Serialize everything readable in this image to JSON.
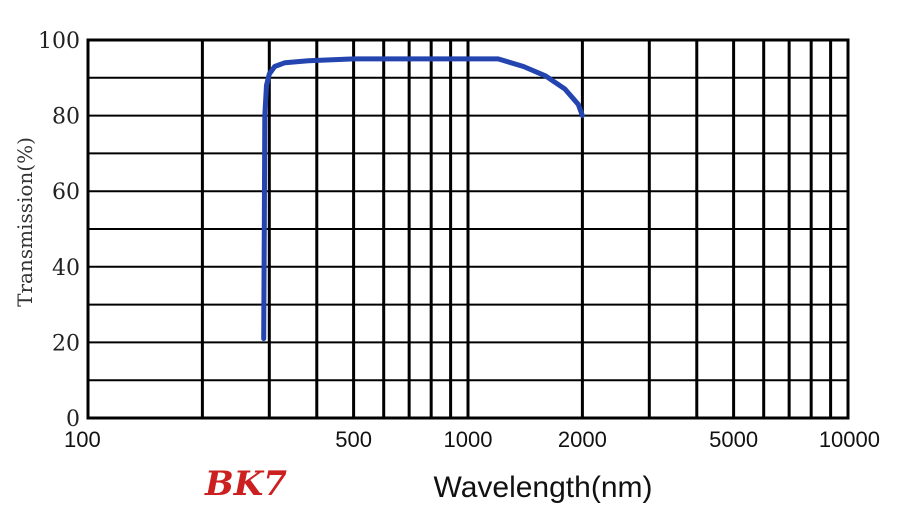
{
  "chart_data": {
    "type": "line",
    "title": "",
    "material_label": "BK7",
    "xlabel": "Wavelength(nm)",
    "ylabel": "Transmission(%)",
    "x_scale": "log",
    "xlim": [
      100,
      10000
    ],
    "ylim": [
      0,
      100
    ],
    "x_tick_labels": [
      "100",
      "500",
      "1000",
      "2000",
      "5000",
      "10000"
    ],
    "x_tick_values": [
      100,
      500,
      1000,
      2000,
      5000,
      10000
    ],
    "y_tick_labels": [
      "0",
      "20",
      "40",
      "60",
      "80",
      "100"
    ],
    "y_tick_values": [
      0,
      20,
      40,
      60,
      80,
      100
    ],
    "grid": true,
    "grid_x_values": [
      200,
      300,
      400,
      500,
      600,
      700,
      800,
      900,
      1000,
      2000,
      3000,
      4000,
      5000,
      6000,
      7000,
      8000,
      9000
    ],
    "grid_y_values": [
      10,
      20,
      30,
      40,
      50,
      60,
      70,
      80,
      90
    ],
    "series": [
      {
        "x": [
          290,
          291,
          292,
          295,
          300,
          310,
          330,
          380,
          500,
          700,
          1000,
          1200,
          1400,
          1600,
          1800,
          1950,
          2000
        ],
        "y": [
          21,
          50,
          80,
          88,
          91,
          93,
          94,
          94.5,
          95,
          95,
          95,
          95,
          93,
          90.5,
          87,
          83,
          80
        ],
        "color": "#2444b0"
      }
    ],
    "colors": {
      "line": "#2444b0",
      "material_label": "#cc1f1f",
      "grid": "#000000"
    }
  }
}
